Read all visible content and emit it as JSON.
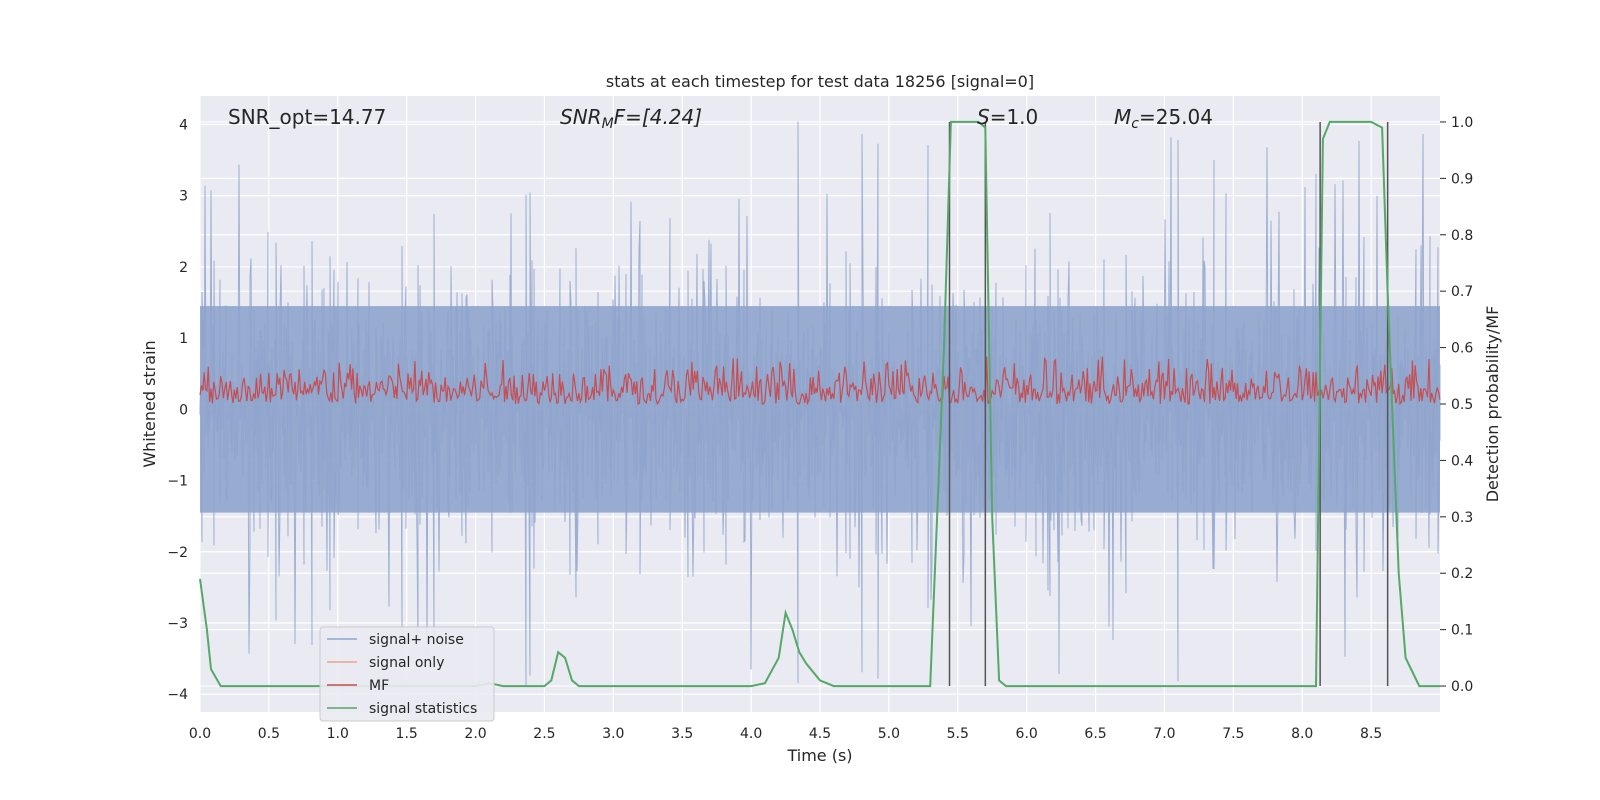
{
  "chart_data": {
    "type": "line",
    "title": "stats at each timestep for test data 18256 [signal=0]",
    "xlabel": "Time (s)",
    "ylabel_left": "Whitened strain",
    "ylabel_right": "Detection probability/MF",
    "xlim": [
      0.0,
      9.0
    ],
    "ylim_left": [
      -4.25,
      4.4
    ],
    "ylim_right": [
      -0.046,
      1.046
    ],
    "x_ticks": [
      "0.0",
      "0.5",
      "1.0",
      "1.5",
      "2.0",
      "2.5",
      "3.0",
      "3.5",
      "4.0",
      "4.5",
      "5.0",
      "5.5",
      "6.0",
      "6.5",
      "7.0",
      "7.5",
      "8.0",
      "8.5"
    ],
    "y_ticks_left": [
      "4",
      "3",
      "2",
      "1",
      "0",
      "−1",
      "−2",
      "−3",
      "−4"
    ],
    "y_ticks_right": [
      "1.0",
      "0.9",
      "0.8",
      "0.7",
      "0.6",
      "0.5",
      "0.4",
      "0.3",
      "0.2",
      "0.1",
      "0.0"
    ],
    "annotations": {
      "snr_opt": "SNR_opt=14.77",
      "snr_mf_sym": "SNR",
      "snr_mf_sub": "M",
      "snr_mf_rest": "F=[4.24]",
      "s_sym": "S",
      "s_rest": "=1.0",
      "mc_sym": "M",
      "mc_sub": "c",
      "mc_rest": "=25.04"
    },
    "legend": [
      {
        "label": "signal+ noise",
        "color": "#8fa4cc"
      },
      {
        "label": "signal only",
        "color": "#e8a58c"
      },
      {
        "label": "MF",
        "color": "#c44e52"
      },
      {
        "label": "signal statistics",
        "color": "#55a868"
      }
    ],
    "series": [
      {
        "name": "signal+ noise",
        "axis": "left",
        "color": "#8fa4cc",
        "style": "noise band",
        "typical_range": [
          -1.6,
          1.6
        ],
        "peak_range": [
          -4.0,
          4.0
        ]
      },
      {
        "name": "signal only",
        "axis": "left",
        "color": "#e8a58c",
        "values": []
      },
      {
        "name": "MF",
        "axis": "right",
        "color": "#c44e52",
        "style": "noise band",
        "typical_range": [
          0.5,
          0.57
        ],
        "peak_range": [
          0.5,
          0.6
        ]
      },
      {
        "name": "signal statistics",
        "axis": "right",
        "color": "#55a868",
        "x": [
          0.0,
          0.05,
          0.08,
          0.15,
          0.3,
          0.6,
          1.0,
          1.5,
          2.0,
          2.1,
          2.2,
          2.3,
          2.5,
          2.55,
          2.6,
          2.65,
          2.7,
          2.75,
          2.8,
          3.0,
          3.5,
          4.0,
          4.1,
          4.2,
          4.25,
          4.3,
          4.35,
          4.4,
          4.5,
          4.6,
          5.0,
          5.3,
          5.4,
          5.45,
          5.5,
          5.55,
          5.6,
          5.65,
          5.7,
          5.75,
          5.8,
          5.85,
          5.9,
          6.0,
          6.5,
          7.0,
          7.5,
          8.0,
          8.1,
          8.15,
          8.2,
          8.25,
          8.3,
          8.5,
          8.58,
          8.62,
          8.7,
          8.75,
          8.85,
          8.9,
          9.0
        ],
        "values": [
          0.19,
          0.1,
          0.03,
          0.0,
          0.0,
          0.0,
          0.0,
          0.0,
          0.0,
          0.005,
          0.0,
          0.0,
          0.0,
          0.01,
          0.06,
          0.05,
          0.01,
          0.0,
          0.0,
          0.0,
          0.0,
          0.0,
          0.005,
          0.05,
          0.13,
          0.1,
          0.06,
          0.04,
          0.01,
          0.0,
          0.0,
          0.0,
          0.6,
          1.0,
          1.0,
          1.0,
          1.0,
          1.0,
          0.99,
          0.3,
          0.01,
          0.0,
          0.0,
          0.0,
          0.0,
          0.0,
          0.0,
          0.0,
          0.0,
          0.97,
          1.0,
          1.0,
          1.0,
          1.0,
          0.99,
          0.7,
          0.2,
          0.05,
          0.0,
          0.0,
          0.0
        ]
      }
    ],
    "vertical_lines": [
      5.44,
      5.7,
      8.13,
      8.62
    ]
  }
}
